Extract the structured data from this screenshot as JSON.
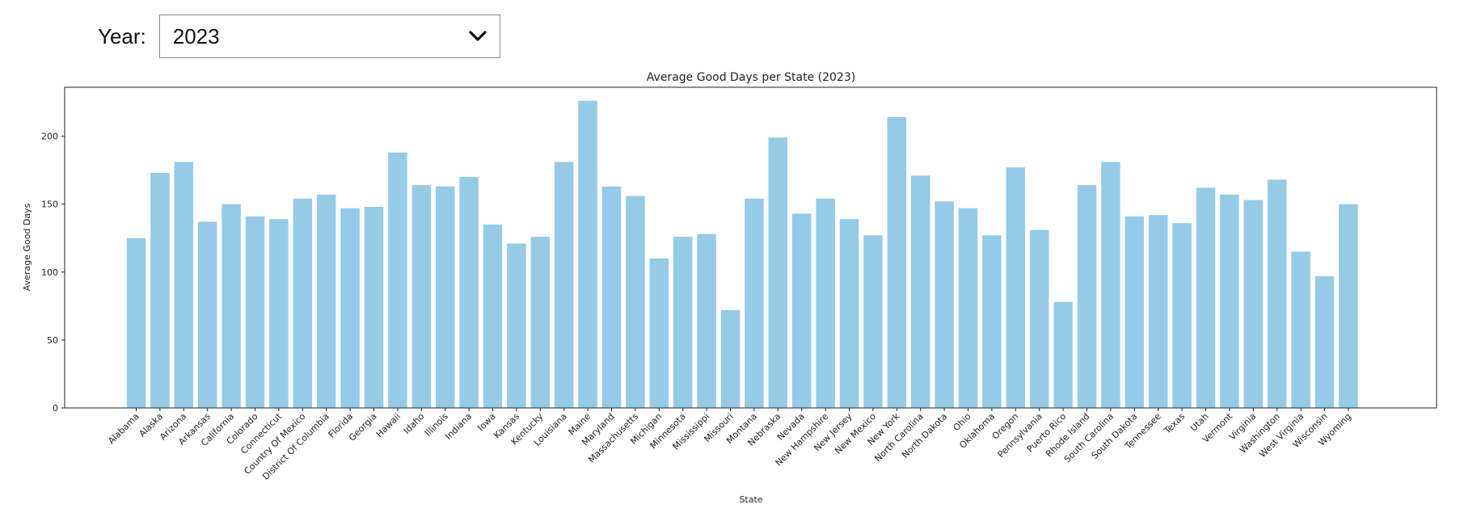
{
  "controls": {
    "year_label": "Year:",
    "year_value": "2023"
  },
  "icons": {
    "dropdown": "chevron-down-icon"
  },
  "chart_data": {
    "type": "bar",
    "title": "Average Good Days per State (2023)",
    "xlabel": "State",
    "ylabel": "Average Good Days",
    "ylim": [
      0,
      236
    ],
    "yticks": [
      0,
      50,
      100,
      150,
      200
    ],
    "bar_color": "#96cbe7",
    "grid": false,
    "categories": [
      "Alabama",
      "Alaska",
      "Arizona",
      "Arkansas",
      "California",
      "Colorado",
      "Connecticut",
      "Country Of Mexico",
      "District Of Columbia",
      "Florida",
      "Georgia",
      "Hawaii",
      "Idaho",
      "Illinois",
      "Indiana",
      "Iowa",
      "Kansas",
      "Kentucky",
      "Louisiana",
      "Maine",
      "Maryland",
      "Massachusetts",
      "Michigan",
      "Minnesota",
      "Mississippi",
      "Missouri",
      "Montana",
      "Nebraska",
      "Nevada",
      "New Hampshire",
      "New Jersey",
      "New Mexico",
      "New York",
      "North Carolina",
      "North Dakota",
      "Ohio",
      "Oklahoma",
      "Oregon",
      "Pennsylvania",
      "Puerto Rico",
      "Rhode Island",
      "South Carolina",
      "South Dakota",
      "Tennessee",
      "Texas",
      "Utah",
      "Vermont",
      "Virginia",
      "Washington",
      "West Virginia",
      "Wisconsin",
      "Wyoming"
    ],
    "values": [
      125,
      173,
      181,
      137,
      150,
      141,
      139,
      154,
      157,
      147,
      148,
      188,
      164,
      163,
      170,
      135,
      121,
      126,
      181,
      226,
      163,
      156,
      110,
      126,
      128,
      72,
      154,
      199,
      143,
      154,
      139,
      127,
      214,
      171,
      152,
      147,
      127,
      177,
      131,
      78,
      164,
      181,
      141,
      142,
      136,
      162,
      157,
      153,
      168,
      115,
      97,
      150
    ]
  }
}
